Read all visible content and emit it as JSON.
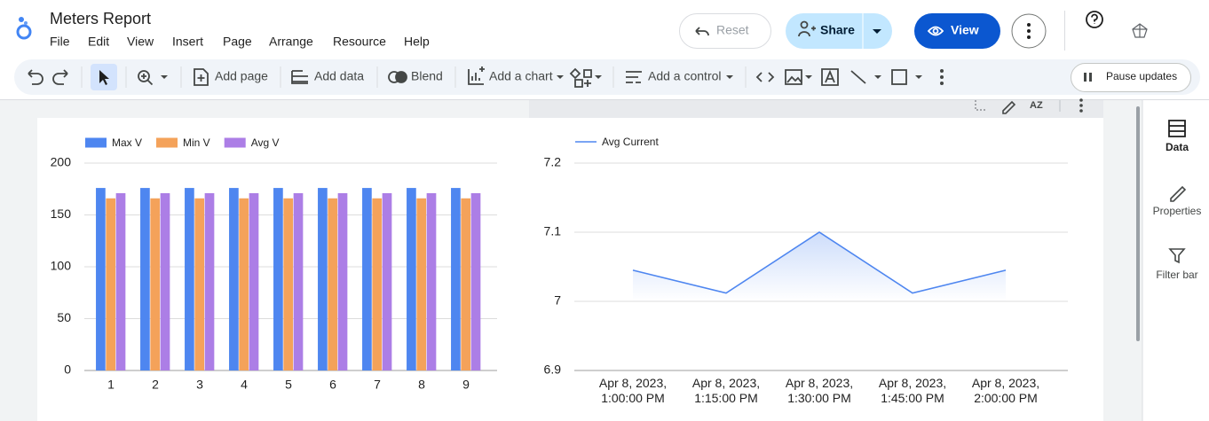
{
  "header": {
    "title": "Meters Report",
    "menu": [
      "File",
      "Edit",
      "View",
      "Insert",
      "Page",
      "Arrange",
      "Resource",
      "Help"
    ]
  },
  "buttons": {
    "reset": "Reset",
    "share": "Share",
    "view": "View"
  },
  "toolbar": {
    "add_page": "Add page",
    "add_data": "Add data",
    "blend": "Blend",
    "add_chart": "Add a chart",
    "add_control": "Add a control",
    "pause": "Pause updates"
  },
  "side_panel": [
    "Data",
    "Properties",
    "Filter bar"
  ],
  "chart_data": [
    {
      "type": "bar",
      "categories": [
        "1",
        "2",
        "3",
        "4",
        "5",
        "6",
        "7",
        "8",
        "9"
      ],
      "series": [
        {
          "name": "Max V",
          "color": "#4e86f0",
          "values": [
            176,
            176,
            176,
            176,
            176,
            176,
            176,
            176,
            176
          ]
        },
        {
          "name": "Min V",
          "color": "#f4a25a",
          "values": [
            166,
            166,
            166,
            166,
            166,
            166,
            166,
            166,
            166
          ]
        },
        {
          "name": "Avg V",
          "color": "#ac7ee6",
          "values": [
            171,
            171,
            171,
            171,
            171,
            171,
            171,
            171,
            171
          ]
        }
      ],
      "ylim": [
        0,
        200
      ],
      "yticks": [
        0,
        50,
        100,
        150,
        200
      ],
      "grid": true,
      "legend": "top-left"
    },
    {
      "type": "line",
      "categories": [
        "Apr 8, 2023, 1:00:00 PM",
        "Apr 8, 2023, 1:15:00 PM",
        "Apr 8, 2023, 1:30:00 PM",
        "Apr 8, 2023, 1:45:00 PM",
        "Apr 8, 2023, 2:00:00 PM"
      ],
      "series": [
        {
          "name": "Avg Current",
          "color": "#4e86f0",
          "values": [
            7.045,
            7.012,
            7.1,
            7.012,
            7.045
          ]
        }
      ],
      "ylim": [
        6.9,
        7.2
      ],
      "yticks": [
        6.9,
        7,
        7.1,
        7.2
      ],
      "grid": true,
      "legend": "top-left"
    }
  ]
}
